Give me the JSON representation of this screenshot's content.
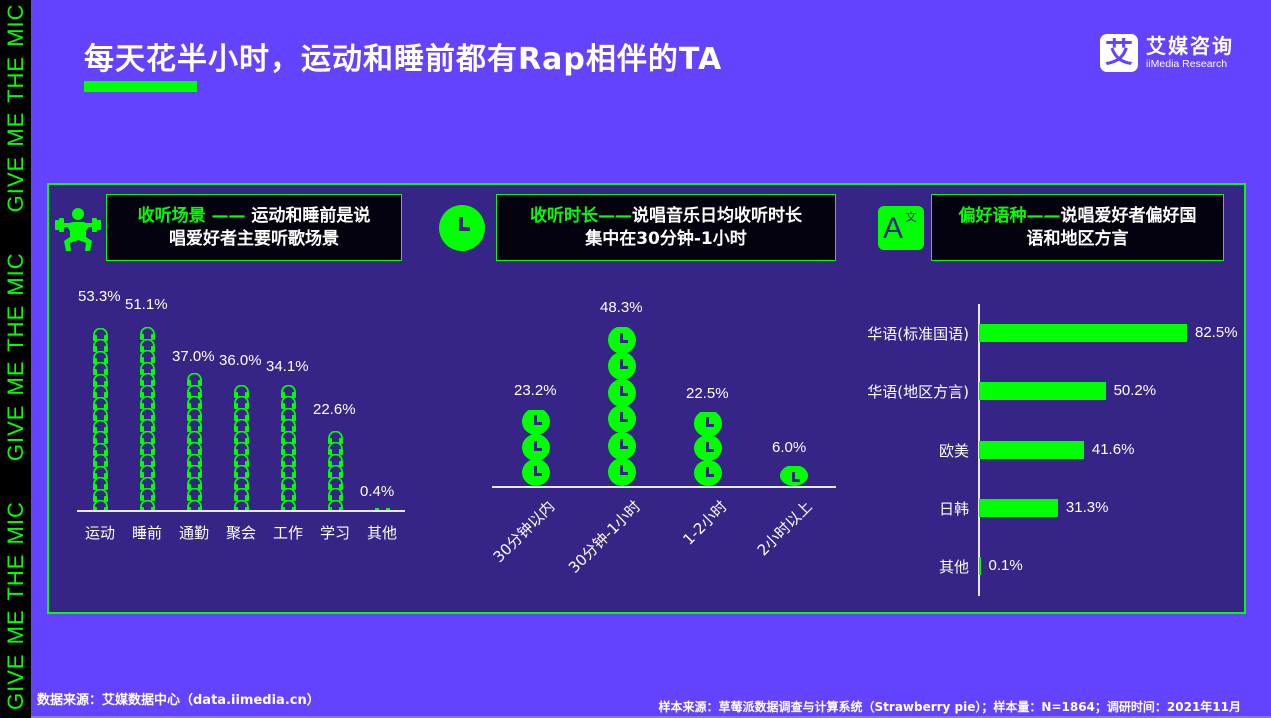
{
  "sidebar": {
    "text": "GIVE ME THE MIC",
    "repeat": 3
  },
  "header": {
    "title": "每天花半小时，运动和睡前都有Rap相伴的TA",
    "logo_mark": "艾",
    "logo_cn": "艾媒咨询",
    "logo_en": "iiMedia Research"
  },
  "sections": {
    "scene": {
      "icon": "weightlifter-icon",
      "highlight": "收听场景 —— ",
      "text_line1": "运动和睡前是说",
      "text_line2": "唱爱好者主要听歌场景"
    },
    "duration": {
      "icon": "clock-icon",
      "highlight": "收听时长——",
      "text_line1": "说唱音乐日均收听时长",
      "text_line2": "集中在30分钟-1小时"
    },
    "language": {
      "icon": "translate-icon",
      "icon_letter": "A",
      "icon_sub": "文",
      "highlight": "偏好语种——",
      "text_line1": "说唱爱好者偏好国",
      "text_line2": "语和地区方言"
    }
  },
  "chart_data": [
    {
      "type": "bar",
      "title": "收听场景",
      "style": "pictogram (headphones)",
      "categories": [
        "运动",
        "睡前",
        "通勤",
        "聚会",
        "工作",
        "学习",
        "其他"
      ],
      "values": [
        53.3,
        51.1,
        37.0,
        36.0,
        34.1,
        22.6,
        0.4
      ],
      "labels": [
        "53.3%",
        "51.1%",
        "37.0%",
        "36.0%",
        "34.1%",
        "22.6%",
        "0.4%"
      ],
      "unit": "%",
      "orientation": "vertical"
    },
    {
      "type": "bar",
      "title": "收听时长",
      "style": "pictogram (clocks)",
      "categories": [
        "30分钟以内",
        "30分钟-1小时",
        "1-2小时",
        "2小时以上"
      ],
      "values": [
        23.2,
        48.3,
        22.5,
        6.0
      ],
      "labels": [
        "23.2%",
        "48.3%",
        "22.5%",
        "6.0%"
      ],
      "unit": "%",
      "orientation": "vertical",
      "xtick_rotation": -45
    },
    {
      "type": "bar",
      "title": "偏好语种",
      "categories": [
        "华语(标准国语)",
        "华语(地区方言)",
        "欧美",
        "日韩",
        "其他"
      ],
      "values": [
        82.5,
        50.2,
        41.6,
        31.3,
        0.1
      ],
      "labels": [
        "82.5%",
        "50.2%",
        "41.6%",
        "31.3%",
        "0.1%"
      ],
      "unit": "%",
      "orientation": "horizontal",
      "color": "#00ff00"
    }
  ],
  "footer": {
    "source": "数据来源：艾媒数据中心（data.iimedia.cn）",
    "sample": "样本来源：草莓派数据调查与计算系统（Strawberry pie）；样本量：N=1864；调研时间：2021年11月"
  },
  "colors": {
    "background": "#6442fe",
    "panel": "#362587",
    "accent": "#00ff00",
    "caption_bg": "#04020e"
  }
}
